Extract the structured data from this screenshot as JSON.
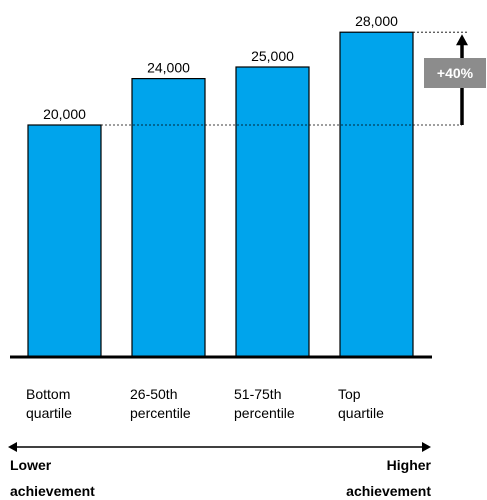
{
  "chart_data": {
    "type": "bar",
    "categories": [
      [
        "Bottom",
        "quartile"
      ],
      [
        "26-50th",
        "percentile"
      ],
      [
        "51-75th",
        "percentile"
      ],
      [
        "Top",
        "quartile"
      ]
    ],
    "values": [
      20000,
      24000,
      25000,
      28000
    ],
    "value_labels": [
      "20,000",
      "24,000",
      "25,000",
      "28,000"
    ],
    "ylim": [
      0,
      30000
    ],
    "grid": false,
    "bar_color": "#00a4ec",
    "annotation": {
      "label": "+40%",
      "from_value": 20000,
      "to_value": 28000,
      "badge_color": "#8c8c8c"
    },
    "axis_arrow": {
      "left_label": [
        "Lower",
        "achievement"
      ],
      "right_label": [
        "Higher",
        "achievement"
      ]
    }
  }
}
